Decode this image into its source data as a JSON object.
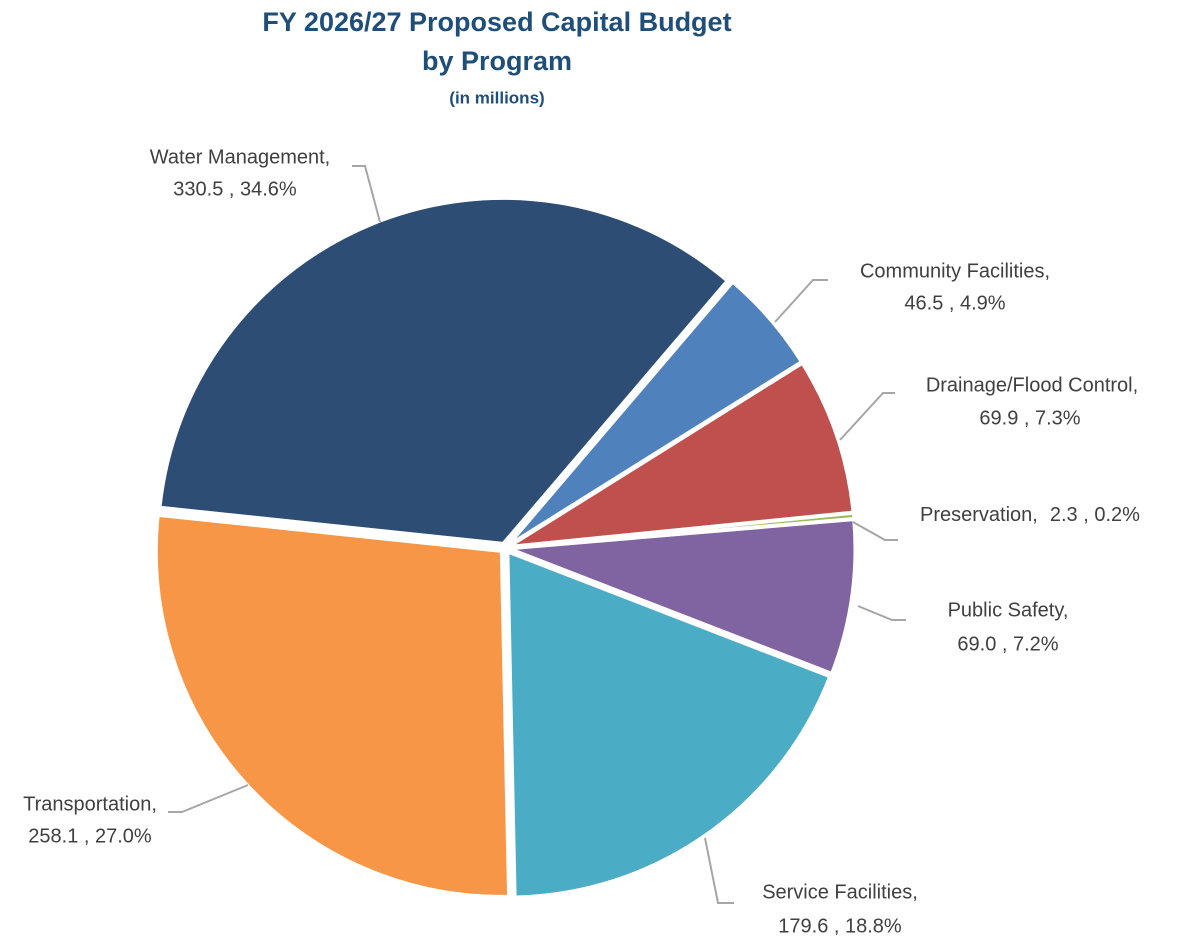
{
  "chart_data": {
    "type": "pie",
    "title": [
      "FY 2026/27 Proposed Capital Budget",
      "by Program"
    ],
    "subtitle": "(in millions)",
    "categories": [
      "Water Management,",
      "Community Facilities,",
      "Drainage/Flood Control,",
      "Preservation,",
      "Public Safety,",
      "Service Facilities,",
      "Transportation,"
    ],
    "values": [
      330.5,
      46.5,
      69.9,
      2.3,
      69.0,
      179.6,
      258.1
    ],
    "value_labels": [
      "330.5 , 34.6%",
      "46.5 , 4.9%",
      "69.9 , 7.3%",
      "2.3 , 0.2%",
      "69.0 , 7.2%",
      "179.6 , 18.8%",
      "258.1 , 27.0%"
    ],
    "colors": [
      "#2e4d74",
      "#4f81bd",
      "#c0504d",
      "#9bbb59",
      "#8064a2",
      "#4bacc6",
      "#f79646"
    ]
  }
}
